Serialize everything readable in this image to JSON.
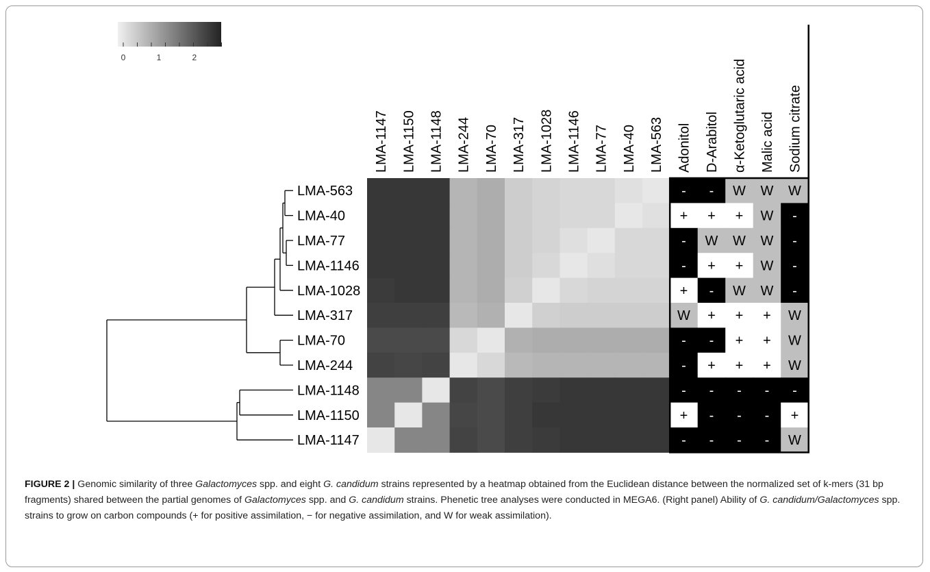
{
  "chart_data": {
    "type": "heatmap",
    "color_scale": {
      "ticks": [
        "0",
        "1",
        "2"
      ],
      "min": 0,
      "max": 2.6,
      "low_color": "#ffffff",
      "high_color": "#000000"
    },
    "strains": [
      "LMA-1147",
      "LMA-1150",
      "LMA-1148",
      "LMA-244",
      "LMA-70",
      "LMA-317",
      "LMA-1028",
      "LMA-1146",
      "LMA-77",
      "LMA-40",
      "LMA-563"
    ],
    "row_labels": [
      "LMA-563",
      "LMA-40",
      "LMA-77",
      "LMA-1146",
      "LMA-1028",
      "LMA-317",
      "LMA-70",
      "LMA-244",
      "LMA-1148",
      "LMA-1150",
      "LMA-1147"
    ],
    "distance_matrix": [
      [
        2.35,
        2.35,
        2.35,
        0.75,
        0.85,
        0.45,
        0.35,
        0.3,
        0.3,
        0.2,
        0.12
      ],
      [
        2.35,
        2.35,
        2.35,
        0.75,
        0.85,
        0.45,
        0.35,
        0.3,
        0.3,
        0.12,
        0.2
      ],
      [
        2.35,
        2.35,
        2.35,
        0.75,
        0.85,
        0.45,
        0.35,
        0.22,
        0.12,
        0.3,
        0.3
      ],
      [
        2.35,
        2.35,
        2.35,
        0.75,
        0.85,
        0.45,
        0.3,
        0.12,
        0.22,
        0.3,
        0.3
      ],
      [
        2.3,
        2.35,
        2.35,
        0.75,
        0.85,
        0.4,
        0.12,
        0.3,
        0.35,
        0.35,
        0.35
      ],
      [
        2.25,
        2.25,
        2.25,
        0.7,
        0.8,
        0.12,
        0.4,
        0.45,
        0.45,
        0.45,
        0.45
      ],
      [
        2.1,
        2.1,
        2.1,
        0.3,
        0.12,
        0.8,
        0.85,
        0.85,
        0.85,
        0.85,
        0.85
      ],
      [
        2.2,
        2.15,
        2.2,
        0.12,
        0.3,
        0.7,
        0.75,
        0.75,
        0.75,
        0.75,
        0.75
      ],
      [
        1.35,
        1.35,
        0.12,
        2.2,
        2.1,
        2.25,
        2.3,
        2.35,
        2.35,
        2.35,
        2.35
      ],
      [
        1.35,
        0.12,
        1.35,
        2.15,
        2.1,
        2.25,
        2.35,
        2.35,
        2.35,
        2.35,
        2.35
      ],
      [
        0.12,
        1.35,
        1.35,
        2.2,
        2.1,
        2.25,
        2.3,
        2.35,
        2.35,
        2.35,
        2.35
      ]
    ],
    "compounds": [
      "Adonitol",
      "D-Arabitol",
      "α-Ketoglutaric acid",
      "Malic acid",
      "Sodium citrate"
    ],
    "assimilation": [
      [
        "-",
        "-",
        "W",
        "W",
        "W"
      ],
      [
        "+",
        "+",
        "+",
        "W",
        "-"
      ],
      [
        "-",
        "W",
        "W",
        "W",
        "-"
      ],
      [
        "-",
        "+",
        "+",
        "W",
        "-"
      ],
      [
        "+",
        "-",
        "W",
        "W",
        "-"
      ],
      [
        "W",
        "+",
        "+",
        "+",
        "W"
      ],
      [
        "-",
        "-",
        "+",
        "+",
        "W"
      ],
      [
        "-",
        "+",
        "+",
        "+",
        "W"
      ],
      [
        "-",
        "-",
        "-",
        "-",
        "-"
      ],
      [
        "+",
        "-",
        "-",
        "-",
        "+"
      ],
      [
        "-",
        "-",
        "-",
        "-",
        "W"
      ]
    ],
    "assimilation_colors": {
      "+": "#ffffff",
      "-": "#000000",
      "W": "#bfbfbf"
    }
  },
  "caption": {
    "label": "FIGURE 2 |",
    "parts": [
      {
        "t": " Genomic similarity of three ",
        "i": false
      },
      {
        "t": "Galactomyces",
        "i": true
      },
      {
        "t": " spp. and eight ",
        "i": false
      },
      {
        "t": "G. candidum",
        "i": true
      },
      {
        "t": " strains represented by a heatmap obtained from the Euclidean distance between the normalized set of k-mers (31 bp fragments) shared between the partial genomes of ",
        "i": false
      },
      {
        "t": "Galactomyces",
        "i": true
      },
      {
        "t": " spp. and ",
        "i": false
      },
      {
        "t": "G. candidum",
        "i": true
      },
      {
        "t": " strains. Phenetic tree analyses were conducted in MEGA6. (Right panel) Ability of ",
        "i": false
      },
      {
        "t": "G. candidum/Galactomyces",
        "i": true
      },
      {
        "t": " spp. strains to grow on carbon compounds (+ for positive assimilation, − for negative assimilation, and W for weak assimilation).",
        "i": false
      }
    ]
  }
}
